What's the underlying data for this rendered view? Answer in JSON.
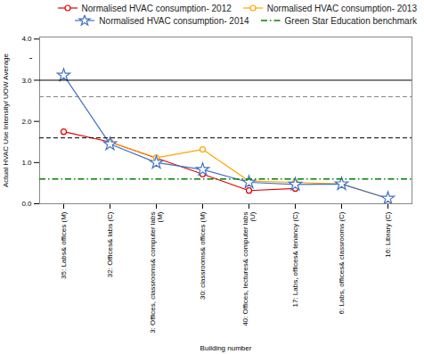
{
  "chart_data": {
    "type": "line",
    "title": "",
    "xlabel": "Building number",
    "ylabel": "Actual HVAC Use Intensity/ UOW Average",
    "categories": [
      "35: Labs& offices (M)",
      "32: Offices& labs (C)",
      "3: Offices, classrooms& computer labs\n(M)",
      "30: classrooms& offices (M)",
      "40: Offices, lectures& computer labs\n(U)",
      "17: Labs, offices& tenancy (C)",
      "6: Labs, offices& classrooms (C)",
      "16: Library (C)"
    ],
    "series": [
      {
        "name": "Normalised HVAC consumption- 2012",
        "color": "#e60000",
        "marker": "circle",
        "line_style": "solid",
        "values": [
          1.75,
          1.5,
          null,
          0.72,
          0.32,
          0.37,
          null,
          null
        ]
      },
      {
        "name": "Normalised HVAC consumption- 2013",
        "color": "#ffa500",
        "marker": "circle",
        "line_style": "solid",
        "values": [
          null,
          1.5,
          1.12,
          1.32,
          0.55,
          0.52,
          0.48,
          0.13
        ]
      },
      {
        "name": "Normalised HVAC consumption- 2014",
        "color": "#4472c4",
        "marker": "star",
        "line_style": "solid",
        "values": [
          3.12,
          1.45,
          1.0,
          0.83,
          0.52,
          0.47,
          0.48,
          0.13
        ]
      }
    ],
    "reference_lines": [
      {
        "y": 3.0,
        "color": "black",
        "line_style": "solid"
      },
      {
        "y": 2.6,
        "color": "gray",
        "line_style": "dashed"
      },
      {
        "y": 1.6,
        "color": "black",
        "line_style": "dashed"
      },
      {
        "y": 0.6,
        "color": "green",
        "line_style": "dashdot",
        "name": "Green Star Education benchmark"
      }
    ],
    "annotations": [
      {
        "text": "-",
        "y": 3.55
      }
    ],
    "ylim": [
      0,
      4.05
    ],
    "yticks": [
      0,
      1,
      2,
      3,
      4
    ],
    "grid": false,
    "legend": "upper right"
  }
}
